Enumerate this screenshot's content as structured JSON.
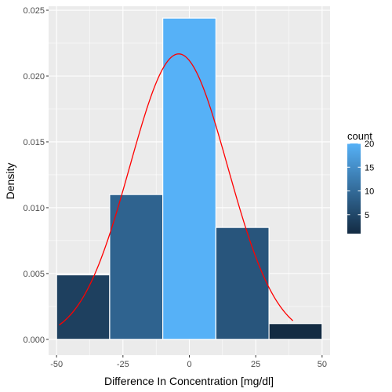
{
  "chart_data": {
    "type": "bar",
    "subtype": "histogram with fitted normal density curve",
    "xlabel": "Difference In Concentration [mg/dl]",
    "ylabel": "Density",
    "xlim": [
      -53,
      53
    ],
    "ylim": [
      -0.0012,
      0.0253
    ],
    "x_ticks": [
      -50,
      -25,
      0,
      25,
      50
    ],
    "x_tick_labels": [
      "-50",
      "-25",
      "0",
      "25",
      "50"
    ],
    "y_ticks": [
      0,
      0.005,
      0.01,
      0.015,
      0.02,
      0.025
    ],
    "y_tick_labels": [
      "0.000",
      "0.005",
      "0.010",
      "0.015",
      "0.020",
      "0.025"
    ],
    "grid": true,
    "bins": [
      {
        "x_start": -50,
        "x_end": -30,
        "density": 0.0049,
        "count": 4
      },
      {
        "x_start": -30,
        "x_end": -10,
        "density": 0.011,
        "count": 9
      },
      {
        "x_start": -10,
        "x_end": 10,
        "density": 0.0244,
        "count": 20
      },
      {
        "x_start": 10,
        "x_end": 30,
        "density": 0.0085,
        "count": 7
      },
      {
        "x_start": 30,
        "x_end": 50,
        "density": 0.0012,
        "count": 1
      }
    ],
    "density_curve": {
      "color": "#ff0000",
      "distribution": "normal",
      "mean": -4,
      "sd": 18.4,
      "x_range": [
        -49,
        39
      ]
    },
    "fill_scale": {
      "title": "count",
      "low_color": "#132b43",
      "high_color": "#56b1f7",
      "range": [
        1,
        20
      ],
      "breaks": [
        5,
        10,
        15,
        20
      ],
      "break_labels": [
        "5",
        "10",
        "15",
        "20"
      ],
      "legend_position": "right"
    },
    "panel_background": "#ebebeb",
    "grid_color": "#ffffff"
  }
}
